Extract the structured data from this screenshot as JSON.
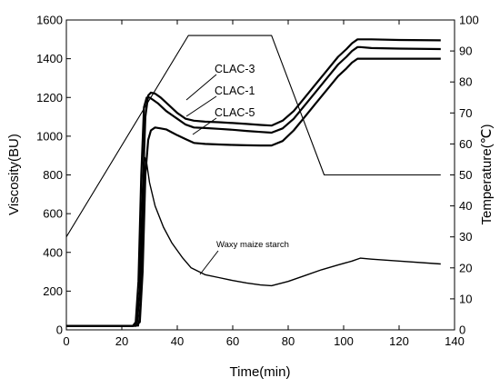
{
  "chart_data": {
    "type": "line",
    "title": "",
    "xlabel": "Time(min)",
    "ylabel": "Viscosity(BU)",
    "y2label": "Temperature(℃)",
    "xlim": [
      0,
      140
    ],
    "ylim": [
      0,
      1600
    ],
    "y2lim": [
      0,
      100
    ],
    "xticks": [
      0,
      20,
      40,
      60,
      80,
      100,
      120,
      140
    ],
    "yticks": [
      0,
      200,
      400,
      600,
      800,
      1000,
      1200,
      1400,
      1600
    ],
    "y2ticks": [
      0,
      10,
      20,
      30,
      40,
      50,
      60,
      70,
      80,
      90,
      100
    ],
    "grid": false,
    "legend": "none",
    "series": [
      {
        "name": "CLAC-3",
        "axis": "left",
        "x": [
          0,
          24,
          25.5,
          26.5,
          27.5,
          28.5,
          29.5,
          30.5,
          32,
          34,
          37,
          40,
          43,
          46,
          50,
          55,
          60,
          65,
          70,
          74,
          78,
          82,
          86,
          90,
          94,
          98,
          101,
          103,
          105,
          106,
          110,
          120,
          135
        ],
        "y": [
          20,
          20,
          40,
          200,
          700,
          1100,
          1210,
          1225,
          1220,
          1200,
          1160,
          1120,
          1090,
          1080,
          1075,
          1072,
          1068,
          1063,
          1058,
          1055,
          1080,
          1130,
          1200,
          1270,
          1340,
          1410,
          1450,
          1480,
          1500,
          1500,
          1500,
          1497,
          1495
        ]
      },
      {
        "name": "CLAC-1",
        "axis": "left",
        "x": [
          0,
          24,
          25,
          26,
          27,
          28,
          29,
          30,
          31,
          33,
          36,
          40,
          43,
          46,
          50,
          55,
          60,
          65,
          70,
          74,
          78,
          82,
          86,
          90,
          94,
          98,
          101,
          103,
          105,
          106,
          110,
          120,
          135
        ],
        "y": [
          20,
          20,
          40,
          250,
          800,
          1150,
          1200,
          1200,
          1190,
          1170,
          1130,
          1090,
          1060,
          1045,
          1042,
          1038,
          1033,
          1027,
          1022,
          1018,
          1040,
          1090,
          1160,
          1230,
          1300,
          1370,
          1410,
          1440,
          1460,
          1460,
          1455,
          1452,
          1450
        ]
      },
      {
        "name": "CLAC-5",
        "axis": "left",
        "x": [
          0,
          25,
          26.5,
          27.5,
          28.5,
          29.5,
          30.5,
          32,
          34,
          36,
          38,
          40,
          43,
          46,
          50,
          55,
          60,
          65,
          70,
          74,
          78,
          82,
          86,
          90,
          94,
          98,
          101,
          103,
          105,
          106,
          110,
          120,
          135
        ],
        "y": [
          20,
          20,
          40,
          300,
          800,
          980,
          1030,
          1045,
          1040,
          1035,
          1020,
          1005,
          985,
          965,
          960,
          957,
          955,
          953,
          952,
          952,
          975,
          1030,
          1100,
          1170,
          1240,
          1310,
          1350,
          1380,
          1400,
          1400,
          1400,
          1400,
          1400
        ]
      },
      {
        "name": "Waxy maize starch",
        "axis": "left",
        "x": [
          0,
          26,
          27,
          27.7,
          28.3,
          29,
          30,
          32,
          35,
          38,
          42,
          45,
          50,
          55,
          60,
          65,
          70,
          74,
          80,
          86,
          92,
          98,
          103,
          106,
          110,
          120,
          135
        ],
        "y": [
          20,
          20,
          200,
          600,
          890,
          860,
          760,
          640,
          530,
          450,
          370,
          320,
          285,
          270,
          255,
          242,
          232,
          228,
          250,
          280,
          310,
          335,
          355,
          370,
          365,
          355,
          340
        ]
      },
      {
        "name": "",
        "axis": "right",
        "x": [
          0,
          44,
          74,
          93,
          135
        ],
        "y": [
          30,
          95,
          95,
          50,
          50
        ]
      }
    ],
    "annotations": [
      {
        "text": "CLAC-3",
        "points_to": "CLAC-3"
      },
      {
        "text": "CLAC-1",
        "points_to": "CLAC-1"
      },
      {
        "text": "CLAC-5",
        "points_to": "CLAC-5"
      },
      {
        "text": "Waxy maize starch",
        "points_to": "Waxy maize starch"
      }
    ]
  }
}
